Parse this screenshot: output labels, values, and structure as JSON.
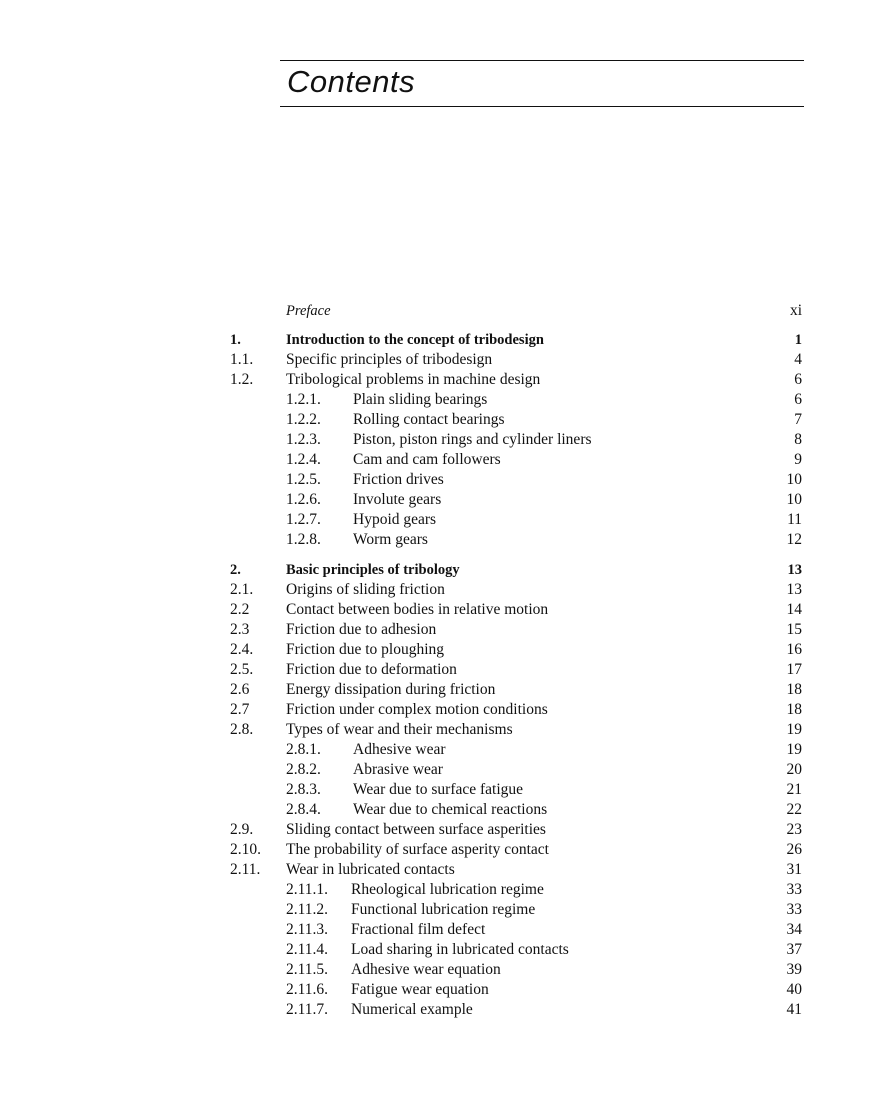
{
  "heading": "Contents",
  "entries": [
    {
      "num": "",
      "title": "Preface",
      "page": "xi",
      "level": 1,
      "style": "italic"
    },
    {
      "num": "1.",
      "title": "Introduction to the concept of tribodesign",
      "page": "1",
      "level": 1,
      "style": "bold"
    },
    {
      "num": "1.1.",
      "title": "Specific principles of tribodesign",
      "page": "4",
      "level": 2
    },
    {
      "num": "1.2.",
      "title": "Tribological problems in machine design",
      "page": "6",
      "level": 2
    },
    {
      "num": "1.2.1.",
      "title": "Plain sliding bearings",
      "page": "6",
      "level": 3
    },
    {
      "num": "1.2.2.",
      "title": "Rolling contact bearings",
      "page": "7",
      "level": 3
    },
    {
      "num": "1.2.3.",
      "title": "Piston, piston rings and cylinder liners",
      "page": "8",
      "level": 3
    },
    {
      "num": "1.2.4.",
      "title": "Cam and cam followers",
      "page": "9",
      "level": 3
    },
    {
      "num": "1.2.5.",
      "title": "Friction drives",
      "page": "10",
      "level": 3
    },
    {
      "num": "1.2.6.",
      "title": "Involute gears",
      "page": "10",
      "level": 3
    },
    {
      "num": "1.2.7.",
      "title": "Hypoid gears",
      "page": "11",
      "level": 3
    },
    {
      "num": "1.2.8.",
      "title": "Worm gears",
      "page": "12",
      "level": 3
    },
    {
      "num": "2.",
      "title": "Basic principles of tribology",
      "page": "13",
      "level": 1,
      "style": "bold"
    },
    {
      "num": "2.1.",
      "title": "Origins of sliding friction",
      "page": "13",
      "level": 2
    },
    {
      "num": "2.2",
      "title": "Contact between bodies in relative motion",
      "page": "14",
      "level": 2
    },
    {
      "num": "2.3",
      "title": "Friction due to adhesion",
      "page": "15",
      "level": 2
    },
    {
      "num": "2.4.",
      "title": "Friction due to ploughing",
      "page": "16",
      "level": 2
    },
    {
      "num": "2.5.",
      "title": "Friction due to deformation",
      "page": "17",
      "level": 2
    },
    {
      "num": "2.6",
      "title": "Energy dissipation during friction",
      "page": "18",
      "level": 2
    },
    {
      "num": "2.7",
      "title": "Friction under complex motion conditions",
      "page": "18",
      "level": 2
    },
    {
      "num": "2.8.",
      "title": "Types of wear and their mechanisms",
      "page": "19",
      "level": 2
    },
    {
      "num": "2.8.1.",
      "title": "Adhesive wear",
      "page": "19",
      "level": 3
    },
    {
      "num": "2.8.2.",
      "title": "Abrasive wear",
      "page": "20",
      "level": 3
    },
    {
      "num": "2.8.3.",
      "title": "Wear due to surface fatigue",
      "page": "21",
      "level": 3
    },
    {
      "num": "2.8.4.",
      "title": "Wear due to chemical reactions",
      "page": "22",
      "level": 3
    },
    {
      "num": "2.9.",
      "title": "Sliding contact between surface asperities",
      "page": "23",
      "level": 2
    },
    {
      "num": "2.10.",
      "title": "The probability of surface asperity contact",
      "page": "26",
      "level": 2
    },
    {
      "num": "2.11.",
      "title": "Wear in lubricated contacts",
      "page": "31",
      "level": 2
    },
    {
      "num": "2.11.1.",
      "title": "Rheological lubrication regime",
      "page": "33",
      "level": 3
    },
    {
      "num": "2.11.2.",
      "title": "Functional lubrication regime",
      "page": "33",
      "level": 3
    },
    {
      "num": "2.11.3.",
      "title": "Fractional film defect",
      "page": "34",
      "level": 3
    },
    {
      "num": "2.11.4.",
      "title": "Load sharing in lubricated contacts",
      "page": "37",
      "level": 3
    },
    {
      "num": "2.11.5.",
      "title": "Adhesive wear equation",
      "page": "39",
      "level": 3
    },
    {
      "num": "2.11.6.",
      "title": "Fatigue wear equation",
      "page": "40",
      "level": 3
    },
    {
      "num": "2.11.7.",
      "title": "Numerical example",
      "page": "41",
      "level": 3
    }
  ]
}
